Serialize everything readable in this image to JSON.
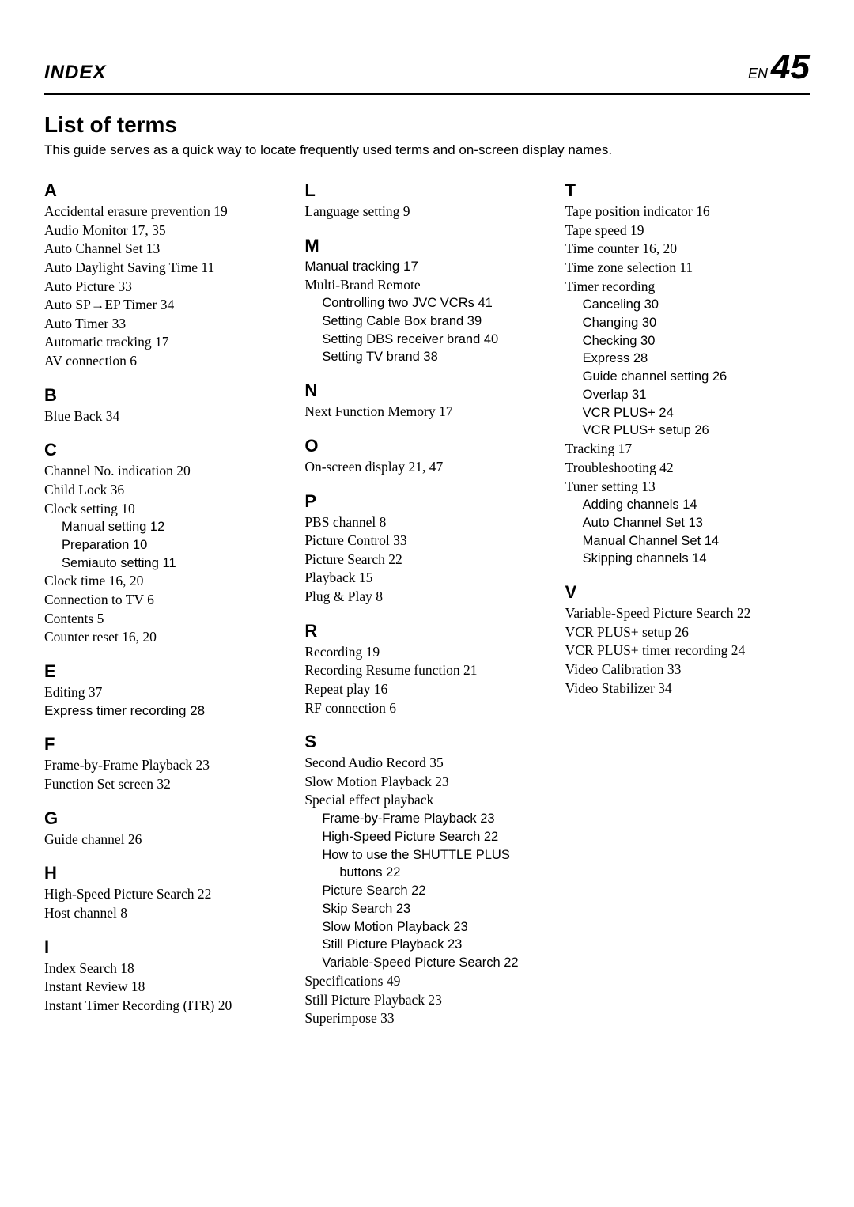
{
  "header": {
    "left": "INDEX",
    "right_prefix": "EN",
    "right_num": "45"
  },
  "title": "List of terms",
  "subtitle": "This guide serves as a quick way to locate frequently used terms and on-screen display names.",
  "columns": [
    {
      "groups": [
        {
          "letter": "A",
          "entries": [
            {
              "text": "Accidental erasure prevention  19"
            },
            {
              "text": "Audio Monitor  17, 35"
            },
            {
              "text": "Auto Channel Set  13"
            },
            {
              "text": "Auto Daylight Saving Time  11"
            },
            {
              "text": "Auto Picture  33"
            },
            {
              "text": "Auto SP→EP Timer  34"
            },
            {
              "text": "Auto Timer  33"
            },
            {
              "text": "Automatic tracking  17"
            },
            {
              "text": "AV connection  6"
            }
          ]
        },
        {
          "letter": "B",
          "entries": [
            {
              "text": "Blue Back  34"
            }
          ]
        },
        {
          "letter": "C",
          "entries": [
            {
              "text": "Channel No. indication  20"
            },
            {
              "text": "Child Lock  36"
            },
            {
              "text": "Clock setting  10"
            },
            {
              "text": "Manual setting  12",
              "sub": true
            },
            {
              "text": "Preparation  10",
              "sub": true
            },
            {
              "text": "Semiauto setting  11",
              "sub": true
            },
            {
              "text": "Clock time  16, 20"
            },
            {
              "text": "Connection to TV  6"
            },
            {
              "text": "Contents  5"
            },
            {
              "text": "Counter reset  16, 20"
            }
          ]
        },
        {
          "letter": "E",
          "entries": [
            {
              "text": "Editing  37"
            },
            {
              "text": "Express timer recording  28",
              "sans": true
            }
          ]
        },
        {
          "letter": "F",
          "entries": [
            {
              "text": "Frame-by-Frame Playback  23"
            },
            {
              "text": "Function Set screen  32"
            }
          ]
        },
        {
          "letter": "G",
          "entries": [
            {
              "text": "Guide channel  26"
            }
          ]
        },
        {
          "letter": "H",
          "entries": [
            {
              "text": "High-Speed Picture Search  22"
            },
            {
              "text": "Host channel  8"
            }
          ]
        },
        {
          "letter": "I",
          "entries": [
            {
              "text": "Index Search  18"
            },
            {
              "text": "Instant Review  18"
            },
            {
              "text": "Instant Timer Recording (ITR)  20"
            }
          ]
        }
      ]
    },
    {
      "groups": [
        {
          "letter": "L",
          "entries": [
            {
              "text": "Language setting  9"
            }
          ]
        },
        {
          "letter": "M",
          "entries": [
            {
              "text": "Manual tracking  17",
              "sans": true
            },
            {
              "text": "Multi-Brand Remote"
            },
            {
              "text": "Controlling two JVC VCRs  41",
              "sub": true
            },
            {
              "text": "Setting Cable Box brand  39",
              "sub": true
            },
            {
              "text": "Setting DBS receiver brand  40",
              "sub": true
            },
            {
              "text": "Setting TV brand  38",
              "sub": true
            }
          ]
        },
        {
          "letter": "N",
          "entries": [
            {
              "text": "Next Function Memory  17"
            }
          ]
        },
        {
          "letter": "O",
          "entries": [
            {
              "text": "On-screen display  21, 47"
            }
          ]
        },
        {
          "letter": "P",
          "entries": [
            {
              "text": "PBS channel  8"
            },
            {
              "text": "Picture Control  33"
            },
            {
              "text": "Picture Search  22"
            },
            {
              "text": "Playback  15"
            },
            {
              "text": "Plug & Play  8"
            }
          ]
        },
        {
          "letter": "R",
          "entries": [
            {
              "text": "Recording  19"
            },
            {
              "text": "Recording Resume function  21"
            },
            {
              "text": "Repeat play  16"
            },
            {
              "text": "RF connection  6"
            }
          ]
        },
        {
          "letter": "S",
          "entries": [
            {
              "text": "Second Audio Record  35"
            },
            {
              "text": "Slow Motion Playback  23"
            },
            {
              "text": "Special effect playback"
            },
            {
              "text": "Frame-by-Frame Playback  23",
              "sub": true
            },
            {
              "text": "High-Speed Picture Search  22",
              "sub": true
            },
            {
              "text": "How to use the SHUTTLE PLUS",
              "sub": true
            },
            {
              "text": "buttons  22",
              "subsub": true
            },
            {
              "text": "Picture Search  22",
              "sub": true
            },
            {
              "text": "Skip Search  23",
              "sub": true
            },
            {
              "text": "Slow Motion Playback  23",
              "sub": true
            },
            {
              "text": "Still Picture Playback  23",
              "sub": true
            },
            {
              "text": "Variable-Speed Picture Search  22",
              "sub": true
            },
            {
              "text": "Specifications  49"
            },
            {
              "text": "Still Picture Playback  23"
            },
            {
              "text": "Superimpose  33"
            }
          ]
        }
      ]
    },
    {
      "groups": [
        {
          "letter": "T",
          "entries": [
            {
              "text": "Tape position indicator  16"
            },
            {
              "text": "Tape speed  19"
            },
            {
              "text": "Time counter  16, 20"
            },
            {
              "text": "Time zone selection  11"
            },
            {
              "text": "Timer recording"
            },
            {
              "text": "Canceling  30",
              "sub": true
            },
            {
              "text": "Changing  30",
              "sub": true
            },
            {
              "text": "Checking  30",
              "sub": true
            },
            {
              "text": "Express  28",
              "sub": true
            },
            {
              "text": "Guide channel setting  26",
              "sub": true
            },
            {
              "text": "Overlap  31",
              "sub": true
            },
            {
              "text": "VCR PLUS+  24",
              "sub": true
            },
            {
              "text": "VCR PLUS+ setup  26",
              "sub": true
            },
            {
              "text": "Tracking  17"
            },
            {
              "text": "Troubleshooting  42"
            },
            {
              "text": "Tuner setting  13"
            },
            {
              "text": "Adding channels  14",
              "sub": true
            },
            {
              "text": "Auto Channel Set  13",
              "sub": true
            },
            {
              "text": "Manual Channel Set  14",
              "sub": true
            },
            {
              "text": "Skipping channels  14",
              "sub": true
            }
          ]
        },
        {
          "letter": "V",
          "entries": [
            {
              "text": "Variable-Speed Picture Search  22"
            },
            {
              "text": "VCR PLUS+ setup  26"
            },
            {
              "text": "VCR PLUS+ timer recording  24"
            },
            {
              "text": "Video Calibration  33"
            },
            {
              "text": "Video Stabilizer  34"
            }
          ]
        }
      ]
    }
  ]
}
